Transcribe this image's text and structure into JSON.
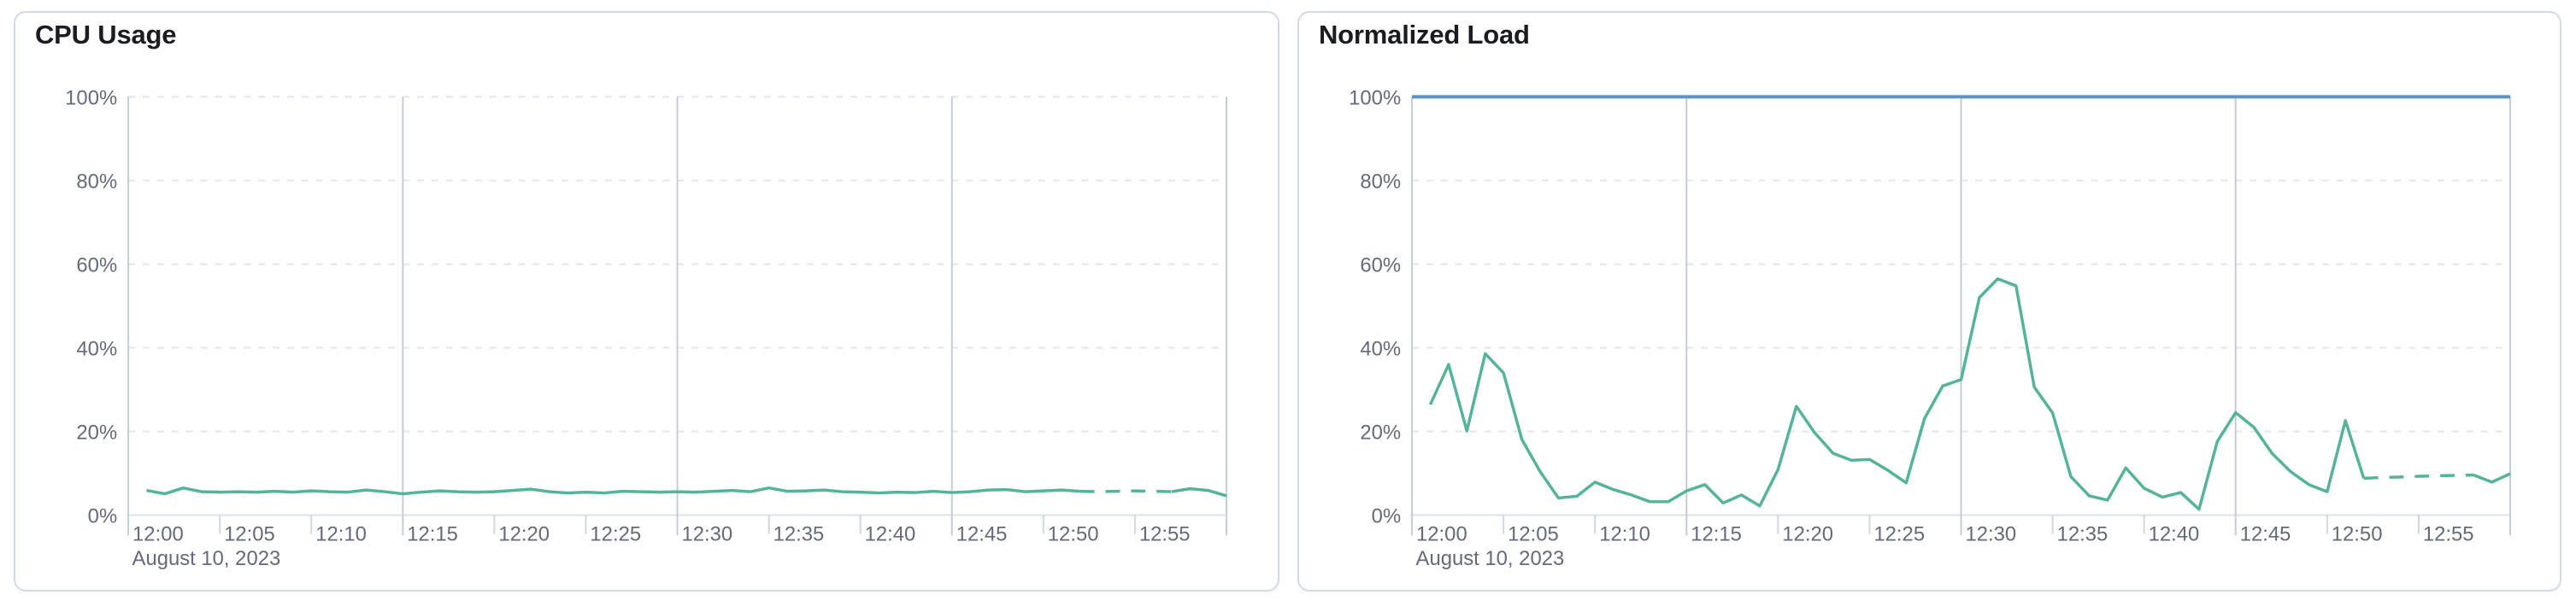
{
  "panels": [
    {
      "title": "CPU Usage"
    },
    {
      "title": "Normalized Load"
    }
  ],
  "chart_data": [
    {
      "type": "line",
      "title": "CPU Usage",
      "xlabel": "",
      "ylabel": "",
      "ylim": [
        0,
        100
      ],
      "y_axis": {
        "min": 0,
        "max": 100,
        "tick_interval": 20,
        "tick_labels": [
          "0%",
          "20%",
          "40%",
          "60%",
          "80%",
          "100%"
        ]
      },
      "x_axis": {
        "start": "12:00",
        "end": "13:00",
        "span_minutes": 60,
        "tick_interval_minutes": 5,
        "tick_labels": [
          "12:00",
          "12:05",
          "12:10",
          "12:15",
          "12:20",
          "12:25",
          "12:30",
          "12:35",
          "12:40",
          "12:45",
          "12:50",
          "12:55"
        ],
        "date_label": "August 10, 2023"
      },
      "grid": {
        "h_dashed": true,
        "v_solid_interval_minutes": 15
      },
      "series": [
        {
          "name": "cpu-usage",
          "color": "#54B399",
          "start_minute": 1,
          "dash_start_index": 51,
          "dash_end_index": 56,
          "values": [
            5.9,
            5.1,
            6.5,
            5.6,
            5.5,
            5.6,
            5.5,
            5.7,
            5.5,
            5.8,
            5.6,
            5.5,
            6.0,
            5.6,
            5.1,
            5.5,
            5.8,
            5.6,
            5.5,
            5.6,
            5.9,
            6.2,
            5.6,
            5.3,
            5.5,
            5.3,
            5.7,
            5.6,
            5.5,
            5.6,
            5.5,
            5.7,
            5.9,
            5.6,
            6.5,
            5.7,
            5.8,
            6.0,
            5.6,
            5.5,
            5.3,
            5.5,
            5.4,
            5.7,
            5.4,
            5.6,
            6.0,
            6.1,
            5.6,
            5.8,
            6.0,
            5.7,
            5.6,
            5.7,
            5.8,
            5.7,
            5.6,
            6.3,
            5.9,
            4.6
          ]
        }
      ]
    },
    {
      "type": "line",
      "title": "Normalized Load",
      "xlabel": "",
      "ylabel": "",
      "ylim": [
        0,
        100
      ],
      "y_axis": {
        "min": 0,
        "max": 100,
        "tick_interval": 20,
        "tick_labels": [
          "0%",
          "20%",
          "40%",
          "60%",
          "80%",
          "100%"
        ]
      },
      "x_axis": {
        "start": "12:00",
        "end": "13:00",
        "span_minutes": 60,
        "tick_interval_minutes": 5,
        "tick_labels": [
          "12:00",
          "12:05",
          "12:10",
          "12:15",
          "12:20",
          "12:25",
          "12:30",
          "12:35",
          "12:40",
          "12:45",
          "12:50",
          "12:55"
        ],
        "date_label": "August 10, 2023"
      },
      "grid": {
        "h_dashed": true,
        "v_solid_interval_minutes": 15
      },
      "series": [
        {
          "name": "normalized-load",
          "color": "#54B399",
          "start_minute": 1,
          "dash_start_index": 51,
          "dash_end_index": 57,
          "values": [
            26.4,
            36.0,
            20.1,
            38.6,
            34.0,
            18.1,
            10.4,
            4.1,
            4.5,
            7.9,
            6.1,
            4.8,
            3.2,
            3.2,
            5.8,
            7.3,
            2.9,
            4.8,
            2.2,
            10.9,
            26.0,
            19.7,
            14.8,
            13.1,
            13.3,
            10.7,
            7.7,
            23.1,
            30.9,
            32.4,
            52.0,
            56.5,
            54.8,
            30.6,
            24.4,
            9.2,
            4.6,
            3.6,
            11.3,
            6.4,
            4.3,
            5.4,
            1.4,
            17.6,
            24.5,
            21.0,
            14.7,
            10.4,
            7.3,
            5.6,
            22.6,
            8.8,
            9.0,
            9.1,
            9.3,
            9.4,
            9.5,
            9.6,
            7.9,
            9.9
          ]
        },
        {
          "name": "max-threshold",
          "type": "threshold",
          "value": 100,
          "color": "#6092C0"
        }
      ]
    }
  ],
  "theme": {
    "line_green": "#54B399",
    "threshold_blue": "#6092C0",
    "grid_dashed": "#E2E5EE",
    "grid_solid": "#C7CBD4",
    "axis_line": "#DDE1E9",
    "tick_mark": "#D2D6DE",
    "label_text": "#646A77",
    "title_text": "#1A1C21",
    "card_border": "#D3DAE6"
  }
}
